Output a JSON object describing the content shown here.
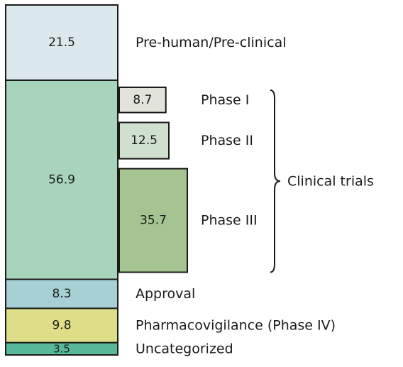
{
  "chart_data": {
    "type": "bar",
    "stack_label": "",
    "segments": [
      {
        "label": "Pre-human/Pre-clinical",
        "value": 21.5,
        "value_label": "21.5",
        "color": "#dbe9ec"
      },
      {
        "label": "",
        "value": 56.9,
        "value_label": "56.9",
        "color": "#a8d4bb"
      },
      {
        "label": "Approval",
        "value": 8.3,
        "value_label": "8.3",
        "color": "#a6d0d4"
      },
      {
        "label": "Pharmacovigilance (Phase IV)",
        "value": 9.8,
        "value_label": "9.8",
        "color": "#dedd88"
      },
      {
        "label": "Uncategorized",
        "value": 3.5,
        "value_label": "3.5",
        "color": "#57b89c"
      }
    ],
    "breakdown": {
      "parent_value": 56.9,
      "group_label": "Clinical trials",
      "items": [
        {
          "label": "Phase I",
          "value": 8.7,
          "value_label": "8.7",
          "color": "#e2e4dc"
        },
        {
          "label": "Phase II",
          "value": 12.5,
          "value_label": "12.5",
          "color": "#d0e0cf"
        },
        {
          "label": "Phase III",
          "value": 35.7,
          "value_label": "35.7",
          "color": "#a6c491"
        }
      ]
    }
  }
}
